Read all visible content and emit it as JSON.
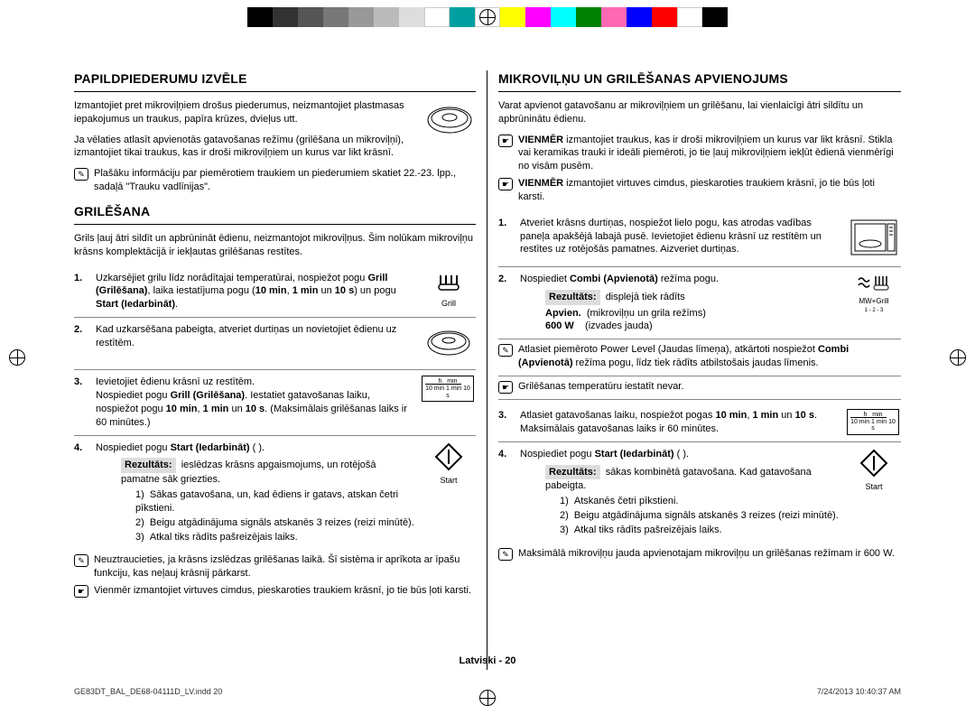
{
  "colorbar": [
    "#000000",
    "#333333",
    "#555555",
    "#777777",
    "#999999",
    "#bbbbbb",
    "#dddddd",
    "#ffffff",
    "#00a0a0",
    "#ffffff",
    "#ffff00",
    "#ff00ff",
    "#00ffff",
    "#008000",
    "#ff69b4",
    "#0000ff",
    "#ff0000",
    "#ffffff",
    "#000000"
  ],
  "left": {
    "h1": "PAPILDPIEDERUMU IZVĒLE",
    "p1": "Izmantojiet pret mikroviļņiem drošus piederumus, neizmantojiet plastmasas iepakojumus un traukus, papīra krūzes, dvieļus utt.",
    "p2": "Ja vēlaties atlasīt apvienotās gatavošanas režīmu (grilēšana un mikroviļņi), izmantojiet tikai traukus, kas ir droši mikroviļņiem un kurus var likt krāsnī.",
    "note1": "Plašāku informāciju par piemērotiem traukiem un piederumiem skatiet 22.-23. lpp., sadaļā \"Trauku vadlīnijas\".",
    "h2": "GRILĒŠANA",
    "p3": "Grils ļauj ātri sildīt un apbrūnināt ēdienu, neizmantojot mikroviļņus. Šim nolūkam mikroviļņu krāsns komplektācijā ir iekļautas grilēšanas restītes.",
    "s1": "Uzkarsējiet grilu līdz norādītajai temperatūrai, nospiežot pogu <b>Grill (Grilēšana)</b>, laika iestatījuma pogu (<b>10 min</b>, <b>1 min</b> un <b>10 s</b>) un pogu <b>Start (Iedarbināt)</b>.",
    "s2": "Kad uzkarsēšana pabeigta, atveriet durtiņas un novietojiet ēdienu uz restītēm.",
    "s3a": "Ievietojiet ēdienu krāsnī uz restītēm.",
    "s3b": "Nospiediet pogu <b>Grill (Grilēšana)</b>. Iestatiet gatavošanas laiku, nospiežot pogu <b>10 min</b>, <b>1 min</b> un <b>10 s</b>. (Maksimālais grilēšanas laiks ir 60 minūtes.)",
    "s4": "Nospiediet pogu <b>Start (Iedarbināt)</b> (     ).",
    "res_label": "Rezultāts:",
    "res_text": "ieslēdzas krāsns apgaismojums, un rotējošā pamatne sāk griezties.",
    "res1": "Sākas gatavošana, un, kad ēdiens ir gatavs, atskan četri pīkstieni.",
    "res2": "Beigu atgādinājuma signāls atskanēs 3 reizes (reizi minūtē).",
    "res3": "Atkal tiks rādīts pašreizējais laiks.",
    "note2": "Neuztraucieties, ja krāsns izslēdzas grilēšanas laikā. Šī sistēma ir aprīkota ar īpašu funkciju, kas neļauj krāsnij pārkarst.",
    "note3": "Vienmēr izmantojiet virtuves cimdus, pieskaroties traukiem krāsnī, jo tie būs ļoti karsti.",
    "grill_label": "Grill",
    "start_label": "Start",
    "time_label_h": "h",
    "time_label_min": "min",
    "time_10min": "10 min",
    "time_1min": "1 min",
    "time_10s": "10 s"
  },
  "right": {
    "h1": "MIKROVIĻŅU UN GRILĒŠANAS APVIENOJUMS",
    "p1": "Varat apvienot gatavošanu ar mikroviļņiem un grilēšanu, lai vienlaicīgi ātri sildītu un apbrūninātu ēdienu.",
    "n1": "<b>VIENMĒR</b> izmantojiet traukus, kas ir droši mikroviļņiem un kurus var likt krāsnī. Stikla vai keramikas trauki ir ideāli piemēroti, jo tie ļauj mikroviļņiem iekļūt ēdienā vienmērīgi no visām pusēm.",
    "n2": "<b>VIENMĒR</b> izmantojiet virtuves cimdus, pieskaroties traukiem krāsnī, jo tie būs ļoti karsti.",
    "s1": "Atveriet krāsns durtiņas, nospiežot lielo pogu, kas atrodas vadības paneļa apakšējā labajā pusē. Ievietojiet ēdienu krāsnī uz restītēm un restītes uz rotējošās pamatnes. Aizveriet durtiņas.",
    "s2": "Nospiediet <b>Combi (Apvienotā)</b> režīma pogu.",
    "res_label": "Rezultāts:",
    "res_text": "displejā tiek rādīts",
    "apvien_label": "Apvien.",
    "apvien_text": "(mikroviļņu un grila režīms)",
    "w600_label": "600 W",
    "w600_text": "(izvades jauda)",
    "n3": "Atlasiet piemēroto Power Level (Jaudas līmeņa), atkārtoti nospiežot <b>Combi (Apvienotā)</b> režīma pogu, līdz tiek rādīts atbilstošais jaudas līmenis.",
    "n4": "Grilēšanas temperatūru iestatīt nevar.",
    "s3": "Atlasiet gatavošanas laiku, nospiežot pogas <b>10 min</b>, <b>1 min</b> un <b>10 s</b>. Maksimālais gatavošanas laiks ir 60 minūtes.",
    "s4": "Nospiediet pogu <b>Start (Iedarbināt)</b> (     ).",
    "res2_text": "sākas kombinētā gatavošana. Kad gatavošana pabeigta.",
    "r1": "Atskanēs četri pīkstieni.",
    "r2": "Beigu atgādinājuma signāls atskanēs 3 reizes (reizi minūtē).",
    "r3": "Atkal tiks rādīts pašreizējais laiks.",
    "n5": "Maksimālā mikroviļņu jauda apvienotajam mikroviļņu un grilēšanas režīmam ir 600 W.",
    "mwgrill_label": "MW+Grill",
    "mwgrill_sub": "1 - 2 - 3",
    "start_label": "Start"
  },
  "footer": "Latviski - 20",
  "imprint_left": "GE83DT_BAL_DE68-04111D_LV.indd   20",
  "imprint_right": "7/24/2013   10:40:37 AM"
}
